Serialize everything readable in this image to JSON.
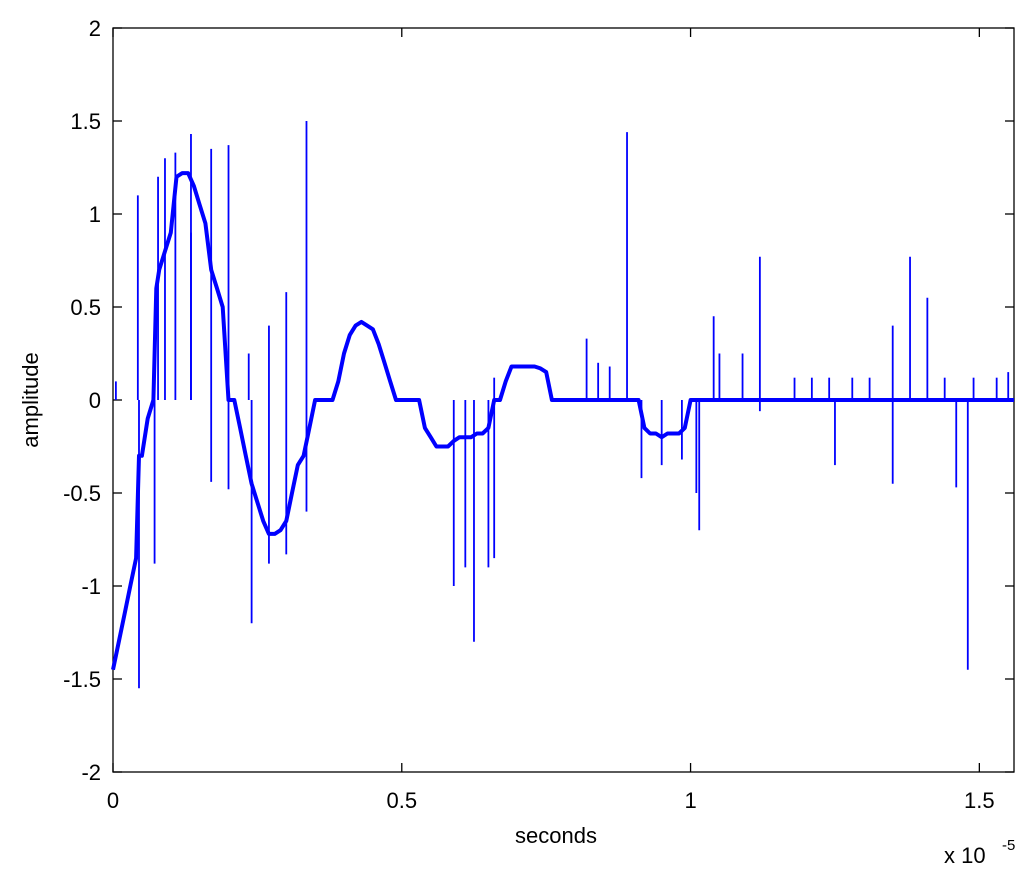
{
  "chart_data": {
    "type": "line",
    "title": "",
    "xlabel": "seconds",
    "ylabel": "amplitude",
    "x_multiplier_label": "x 10",
    "x_multiplier_exponent": "-5",
    "xlim": [
      0,
      1.56
    ],
    "ylim": [
      -2,
      2
    ],
    "xticks": [
      0,
      0.5,
      1,
      1.5
    ],
    "xtick_labels": [
      "0",
      "0.5",
      "1",
      "1.5"
    ],
    "yticks": [
      -2,
      -1.5,
      -1,
      -0.5,
      0,
      0.5,
      1,
      1.5,
      2
    ],
    "ytick_labels": [
      "-2",
      "-1.5",
      "-1",
      "-0.5",
      "0",
      "0.5",
      "1",
      "1.5",
      "2"
    ],
    "grid": false,
    "line_color": "#0000ff",
    "series": [
      {
        "x": [
          0.0,
          0.01,
          0.02,
          0.03,
          0.04,
          0.045,
          0.05,
          0.06,
          0.07,
          0.075,
          0.08,
          0.09,
          0.1,
          0.11,
          0.12,
          0.13,
          0.14,
          0.15,
          0.16,
          0.17,
          0.18,
          0.19,
          0.2,
          0.21,
          0.22,
          0.23,
          0.24,
          0.25,
          0.26,
          0.27,
          0.28,
          0.29,
          0.3,
          0.31,
          0.32,
          0.33,
          0.34,
          0.35,
          0.36,
          0.37,
          0.38,
          0.39,
          0.4,
          0.41,
          0.42,
          0.43,
          0.44,
          0.45,
          0.46,
          0.47,
          0.48,
          0.49,
          0.5,
          0.51,
          0.52,
          0.53,
          0.54,
          0.55,
          0.56,
          0.57,
          0.58,
          0.59,
          0.6,
          0.61,
          0.62,
          0.63,
          0.64,
          0.65,
          0.66,
          0.661,
          0.67,
          0.68,
          0.69,
          0.7,
          0.71,
          0.72,
          0.73,
          0.74,
          0.75,
          0.76,
          0.77,
          0.78,
          0.79,
          0.8,
          0.81,
          0.82,
          0.83,
          0.84,
          0.85,
          0.86,
          0.87,
          0.88,
          0.89,
          0.9,
          0.91,
          0.92,
          0.93,
          0.94,
          0.95,
          0.96,
          0.97,
          0.98,
          0.99,
          1.0,
          1.01,
          1.02,
          1.021,
          1.05,
          1.1,
          1.2,
          1.3,
          1.4,
          1.5,
          1.56
        ],
        "y": [
          -1.45,
          -1.3,
          -1.15,
          -1.0,
          -0.85,
          -0.3,
          -0.3,
          -0.1,
          0.0,
          0.6,
          0.7,
          0.8,
          0.9,
          1.2,
          1.22,
          1.22,
          1.15,
          1.05,
          0.95,
          0.7,
          0.6,
          0.5,
          0.0,
          0.0,
          -0.15,
          -0.3,
          -0.45,
          -0.55,
          -0.65,
          -0.72,
          -0.72,
          -0.7,
          -0.65,
          -0.5,
          -0.35,
          -0.3,
          -0.15,
          0.0,
          0.0,
          0.0,
          0.0,
          0.1,
          0.25,
          0.35,
          0.4,
          0.42,
          0.4,
          0.38,
          0.3,
          0.2,
          0.1,
          0.0,
          0.0,
          0.0,
          0.0,
          0.0,
          -0.15,
          -0.2,
          -0.25,
          -0.25,
          -0.25,
          -0.22,
          -0.2,
          -0.2,
          -0.2,
          -0.18,
          -0.18,
          -0.15,
          0.0,
          0.0,
          0.0,
          0.1,
          0.18,
          0.18,
          0.18,
          0.18,
          0.18,
          0.17,
          0.15,
          0.0,
          0.0,
          0.0,
          0.0,
          0.0,
          0.0,
          0.0,
          0.0,
          0.0,
          0.0,
          0.0,
          0.0,
          0.0,
          0.0,
          0.0,
          0.0,
          -0.15,
          -0.18,
          -0.18,
          -0.2,
          -0.18,
          -0.18,
          -0.18,
          -0.15,
          0.0,
          0.0,
          0.0,
          0.0,
          0.0,
          0.0,
          0.0,
          0.0,
          0.0,
          0.0,
          0.0
        ]
      }
    ],
    "spikes": [
      {
        "x": 0.005,
        "y": 0.1
      },
      {
        "x": 0.043,
        "y": 1.1
      },
      {
        "x": 0.045,
        "y": -1.55
      },
      {
        "x": 0.06,
        "y": 0.0
      },
      {
        "x": 0.072,
        "y": -0.88
      },
      {
        "x": 0.078,
        "y": 1.2
      },
      {
        "x": 0.09,
        "y": 1.3
      },
      {
        "x": 0.108,
        "y": 1.33
      },
      {
        "x": 0.11,
        "y": 0.0
      },
      {
        "x": 0.135,
        "y": 1.43
      },
      {
        "x": 0.135,
        "y": 0.9
      },
      {
        "x": 0.17,
        "y": 1.35
      },
      {
        "x": 0.17,
        "y": -0.44
      },
      {
        "x": 0.2,
        "y": 1.37
      },
      {
        "x": 0.2,
        "y": -0.48
      },
      {
        "x": 0.235,
        "y": 0.25
      },
      {
        "x": 0.24,
        "y": -1.2
      },
      {
        "x": 0.27,
        "y": 0.4
      },
      {
        "x": 0.27,
        "y": -0.88
      },
      {
        "x": 0.3,
        "y": 0.58
      },
      {
        "x": 0.3,
        "y": -0.83
      },
      {
        "x": 0.335,
        "y": 1.5
      },
      {
        "x": 0.335,
        "y": -0.6
      },
      {
        "x": 0.59,
        "y": -1.0
      },
      {
        "x": 0.61,
        "y": -0.9
      },
      {
        "x": 0.625,
        "y": -1.3
      },
      {
        "x": 0.65,
        "y": -0.9
      },
      {
        "x": 0.66,
        "y": 0.12
      },
      {
        "x": 0.66,
        "y": -0.85
      },
      {
        "x": 0.82,
        "y": 0.33
      },
      {
        "x": 0.84,
        "y": 0.2
      },
      {
        "x": 0.86,
        "y": 0.18
      },
      {
        "x": 0.89,
        "y": 1.44
      },
      {
        "x": 0.915,
        "y": -0.42
      },
      {
        "x": 0.95,
        "y": -0.35
      },
      {
        "x": 0.985,
        "y": -0.32
      },
      {
        "x": 1.01,
        "y": -0.5
      },
      {
        "x": 1.015,
        "y": -0.7
      },
      {
        "x": 1.04,
        "y": 0.45
      },
      {
        "x": 1.05,
        "y": 0.25
      },
      {
        "x": 1.09,
        "y": 0.25
      },
      {
        "x": 1.12,
        "y": 0.77
      },
      {
        "x": 1.12,
        "y": -0.06
      },
      {
        "x": 1.18,
        "y": 0.12
      },
      {
        "x": 1.21,
        "y": 0.12
      },
      {
        "x": 1.24,
        "y": 0.12
      },
      {
        "x": 1.25,
        "y": -0.35
      },
      {
        "x": 1.28,
        "y": 0.12
      },
      {
        "x": 1.31,
        "y": 0.12
      },
      {
        "x": 1.35,
        "y": 0.4
      },
      {
        "x": 1.35,
        "y": -0.45
      },
      {
        "x": 1.38,
        "y": 0.77
      },
      {
        "x": 1.41,
        "y": 0.55
      },
      {
        "x": 1.44,
        "y": 0.12
      },
      {
        "x": 1.46,
        "y": -0.47
      },
      {
        "x": 1.48,
        "y": -1.45
      },
      {
        "x": 1.49,
        "y": 0.12
      },
      {
        "x": 1.53,
        "y": 0.12
      },
      {
        "x": 1.55,
        "y": 0.15
      }
    ]
  }
}
